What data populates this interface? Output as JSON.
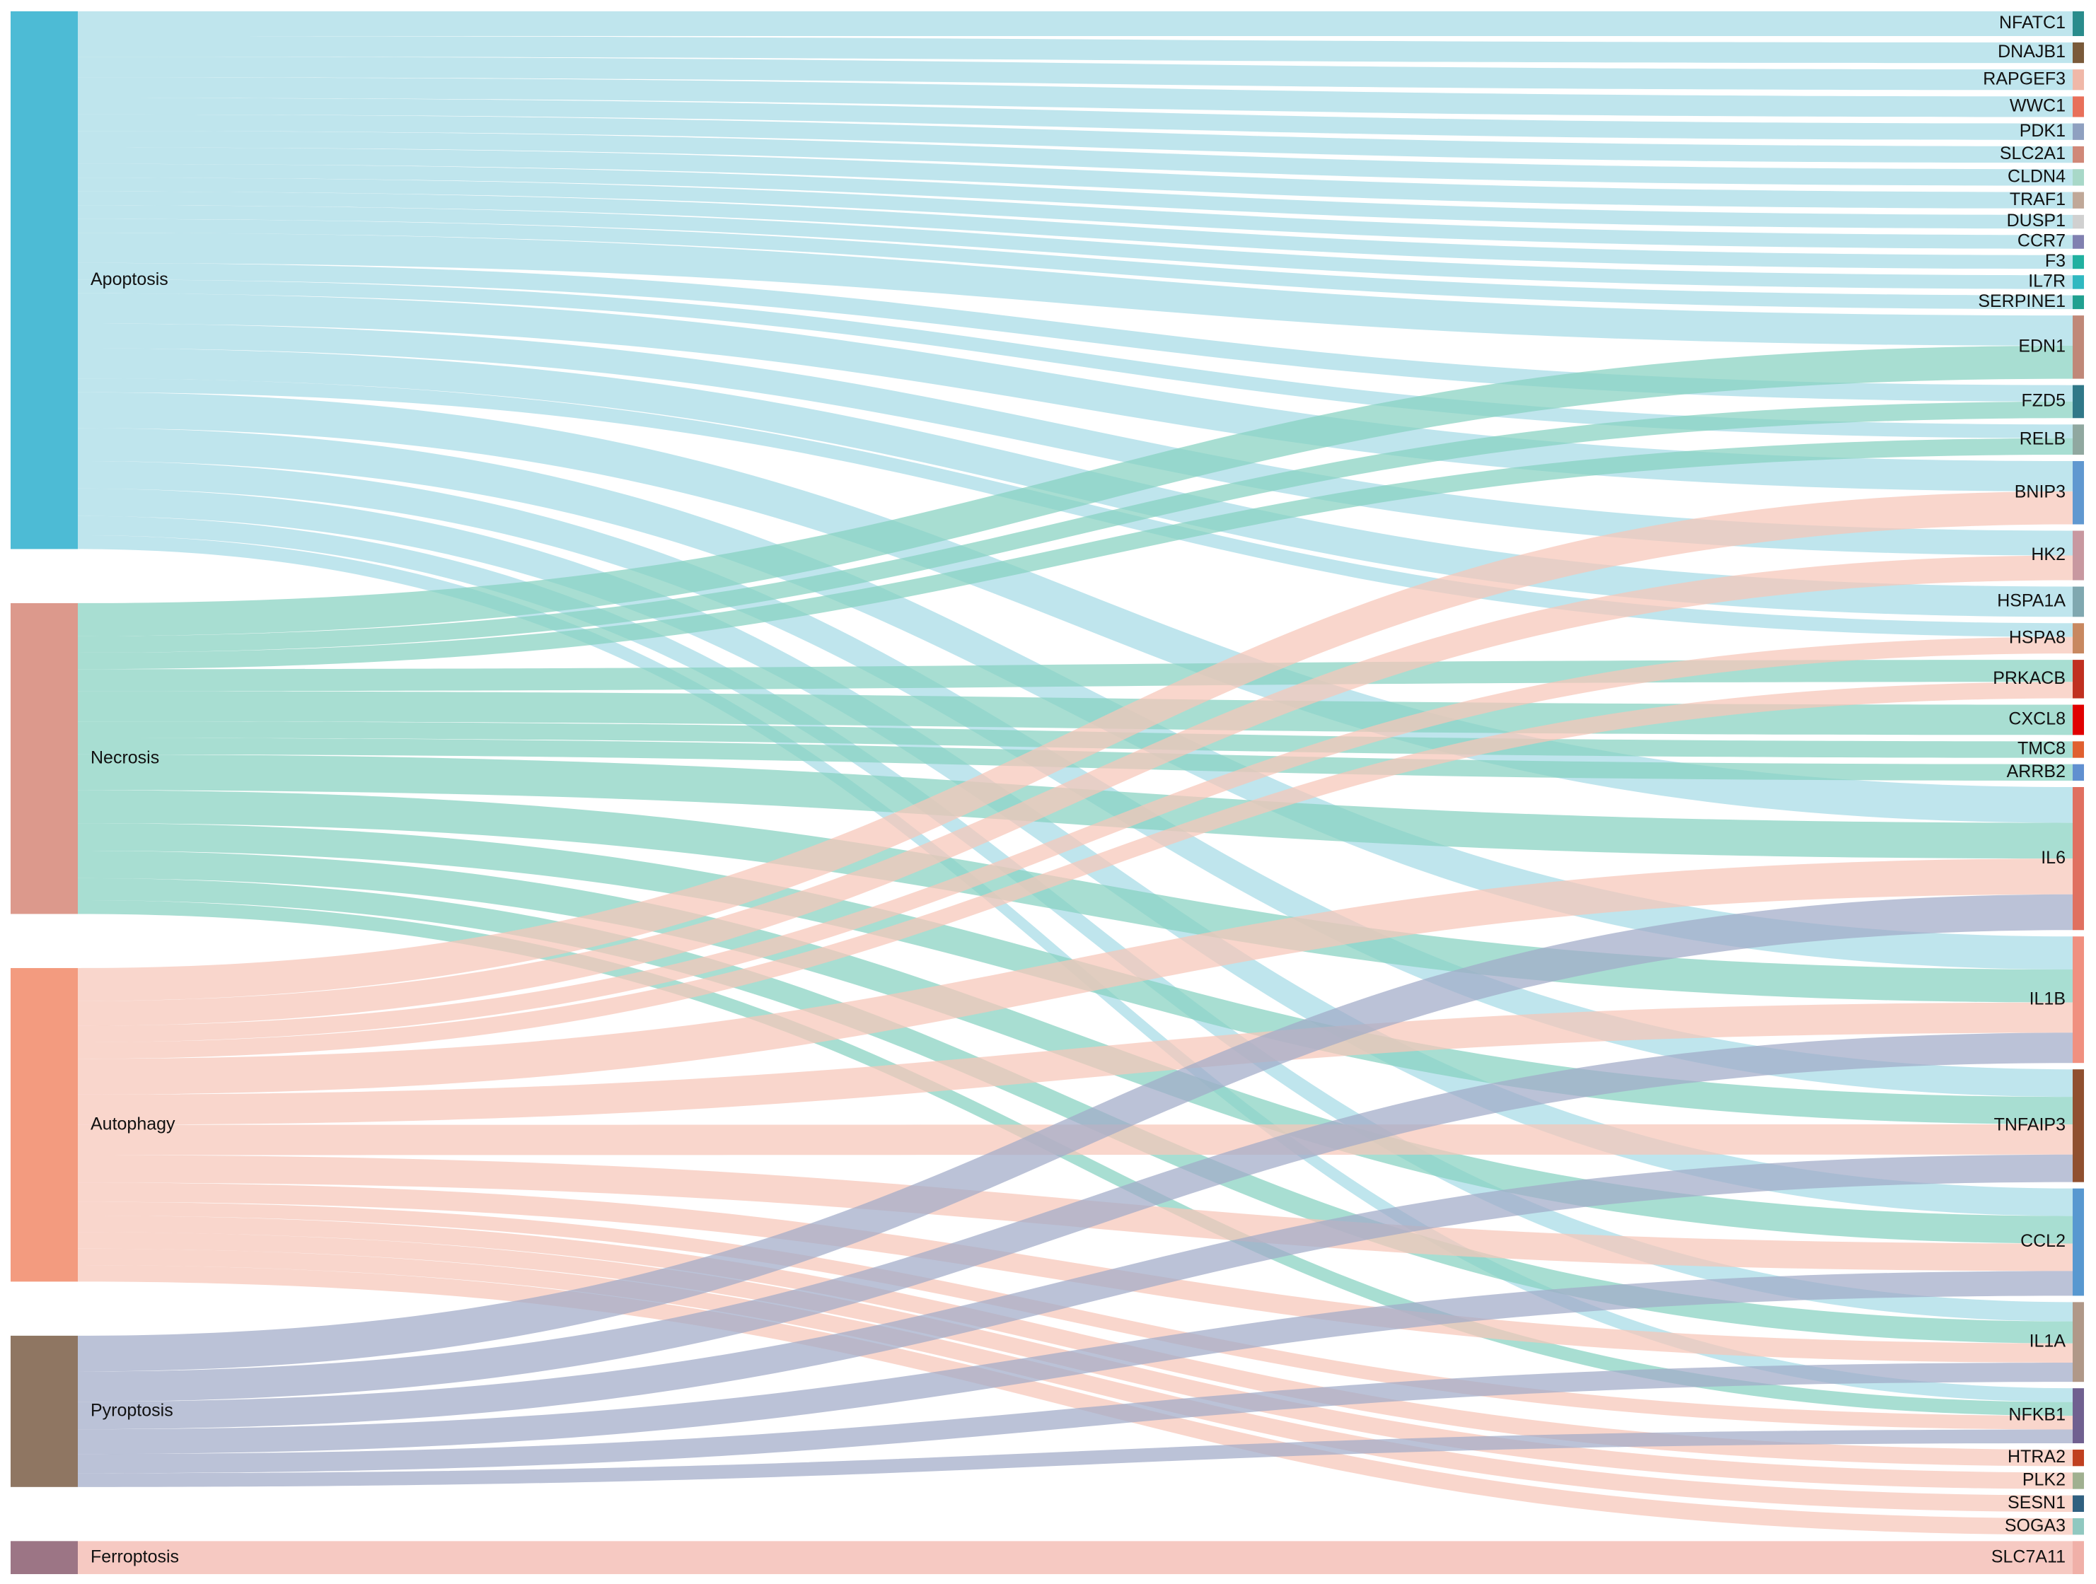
{
  "chart_data": {
    "type": "sankey",
    "sources": [
      {
        "name": "Apoptosis",
        "color": "#4dbbd5",
        "link_color": "#a6dbe6"
      },
      {
        "name": "Necrosis",
        "color": "#dc998c",
        "link_color": "#86d1c0"
      },
      {
        "name": "Autophagy",
        "color": "#f39b7f",
        "link_color": "#f7c6b8"
      },
      {
        "name": "Pyroptosis",
        "color": "#8f7662",
        "link_color": "#a1aac8"
      },
      {
        "name": "Ferroptosis",
        "color": "#9c7585",
        "link_color": "#f2b4ab"
      }
    ],
    "targets": [
      {
        "name": "NFATC1",
        "color": "#2a8c8c"
      },
      {
        "name": "DNAJB1",
        "color": "#7a5a3a"
      },
      {
        "name": "RAPGEF3",
        "color": "#f0b8a8"
      },
      {
        "name": "WWC1",
        "color": "#e8705a"
      },
      {
        "name": "PDK1",
        "color": "#8fa0c0"
      },
      {
        "name": "SLC2A1",
        "color": "#d08878"
      },
      {
        "name": "CLDN4",
        "color": "#a8d8c8"
      },
      {
        "name": "TRAF1",
        "color": "#c0a898"
      },
      {
        "name": "DUSP1",
        "color": "#d0d0d0"
      },
      {
        "name": "CCR7",
        "color": "#8080b0"
      },
      {
        "name": "F3",
        "color": "#20b0a0"
      },
      {
        "name": "IL7R",
        "color": "#30b8c0"
      },
      {
        "name": "SERPINE1",
        "color": "#20a090"
      },
      {
        "name": "EDN1",
        "color": "#c08878"
      },
      {
        "name": "FZD5",
        "color": "#307888"
      },
      {
        "name": "RELB",
        "color": "#90a8a0"
      },
      {
        "name": "BNIP3",
        "color": "#6098d0"
      },
      {
        "name": "HK2",
        "color": "#c898a0"
      },
      {
        "name": "HSPA1A",
        "color": "#80a8b0"
      },
      {
        "name": "HSPA8",
        "color": "#c88860"
      },
      {
        "name": "PRKACB",
        "color": "#c03020"
      },
      {
        "name": "CXCL8",
        "color": "#e00000"
      },
      {
        "name": "TMC8",
        "color": "#e06030"
      },
      {
        "name": "ARRB2",
        "color": "#6090d0"
      },
      {
        "name": "IL6",
        "color": "#e07060"
      },
      {
        "name": "IL1B",
        "color": "#f09080"
      },
      {
        "name": "TNFAIP3",
        "color": "#905030"
      },
      {
        "name": "CCL2",
        "color": "#5898d0"
      },
      {
        "name": "IL1A",
        "color": "#b09888"
      },
      {
        "name": "NFKB1",
        "color": "#706090"
      },
      {
        "name": "HTRA2",
        "color": "#c04020"
      },
      {
        "name": "PLK2",
        "color": "#a0b090"
      },
      {
        "name": "SESN1",
        "color": "#306080"
      },
      {
        "name": "SOGA3",
        "color": "#90c8c0"
      },
      {
        "name": "SLC7A11",
        "color": "#f0b0a8"
      }
    ],
    "links": [
      {
        "source": 0,
        "target": 0,
        "value": 18
      },
      {
        "source": 0,
        "target": 1,
        "value": 15
      },
      {
        "source": 0,
        "target": 2,
        "value": 15
      },
      {
        "source": 0,
        "target": 3,
        "value": 15
      },
      {
        "source": 0,
        "target": 4,
        "value": 12
      },
      {
        "source": 0,
        "target": 5,
        "value": 12
      },
      {
        "source": 0,
        "target": 6,
        "value": 12
      },
      {
        "source": 0,
        "target": 7,
        "value": 12
      },
      {
        "source": 0,
        "target": 8,
        "value": 10
      },
      {
        "source": 0,
        "target": 9,
        "value": 10
      },
      {
        "source": 0,
        "target": 10,
        "value": 10
      },
      {
        "source": 0,
        "target": 11,
        "value": 10
      },
      {
        "source": 0,
        "target": 12,
        "value": 10
      },
      {
        "source": 0,
        "target": 13,
        "value": 22
      },
      {
        "source": 0,
        "target": 14,
        "value": 12
      },
      {
        "source": 0,
        "target": 15,
        "value": 10
      },
      {
        "source": 0,
        "target": 16,
        "value": 22
      },
      {
        "source": 0,
        "target": 17,
        "value": 18
      },
      {
        "source": 0,
        "target": 18,
        "value": 22
      },
      {
        "source": 0,
        "target": 19,
        "value": 10
      },
      {
        "source": 0,
        "target": 24,
        "value": 26
      },
      {
        "source": 0,
        "target": 25,
        "value": 24
      },
      {
        "source": 0,
        "target": 26,
        "value": 20
      },
      {
        "source": 0,
        "target": 27,
        "value": 20
      },
      {
        "source": 0,
        "target": 28,
        "value": 14
      },
      {
        "source": 0,
        "target": 29,
        "value": 10
      },
      {
        "source": 1,
        "target": 13,
        "value": 24
      },
      {
        "source": 1,
        "target": 14,
        "value": 12
      },
      {
        "source": 1,
        "target": 15,
        "value": 12
      },
      {
        "source": 1,
        "target": 20,
        "value": 16
      },
      {
        "source": 1,
        "target": 21,
        "value": 22
      },
      {
        "source": 1,
        "target": 22,
        "value": 12
      },
      {
        "source": 1,
        "target": 23,
        "value": 12
      },
      {
        "source": 1,
        "target": 24,
        "value": 26
      },
      {
        "source": 1,
        "target": 25,
        "value": 24
      },
      {
        "source": 1,
        "target": 26,
        "value": 20
      },
      {
        "source": 1,
        "target": 27,
        "value": 20
      },
      {
        "source": 1,
        "target": 28,
        "value": 16
      },
      {
        "source": 1,
        "target": 29,
        "value": 10
      },
      {
        "source": 2,
        "target": 16,
        "value": 24
      },
      {
        "source": 2,
        "target": 17,
        "value": 18
      },
      {
        "source": 2,
        "target": 19,
        "value": 12
      },
      {
        "source": 2,
        "target": 20,
        "value": 12
      },
      {
        "source": 2,
        "target": 24,
        "value": 26
      },
      {
        "source": 2,
        "target": 25,
        "value": 22
      },
      {
        "source": 2,
        "target": 26,
        "value": 22
      },
      {
        "source": 2,
        "target": 27,
        "value": 20
      },
      {
        "source": 2,
        "target": 28,
        "value": 14
      },
      {
        "source": 2,
        "target": 29,
        "value": 10
      },
      {
        "source": 2,
        "target": 30,
        "value": 12
      },
      {
        "source": 2,
        "target": 31,
        "value": 12
      },
      {
        "source": 2,
        "target": 32,
        "value": 12
      },
      {
        "source": 2,
        "target": 33,
        "value": 12
      },
      {
        "source": 3,
        "target": 24,
        "value": 26
      },
      {
        "source": 3,
        "target": 25,
        "value": 22
      },
      {
        "source": 3,
        "target": 26,
        "value": 20
      },
      {
        "source": 3,
        "target": 27,
        "value": 18
      },
      {
        "source": 3,
        "target": 28,
        "value": 14
      },
      {
        "source": 3,
        "target": 29,
        "value": 10
      },
      {
        "source": 4,
        "target": 34,
        "value": 24
      }
    ]
  }
}
